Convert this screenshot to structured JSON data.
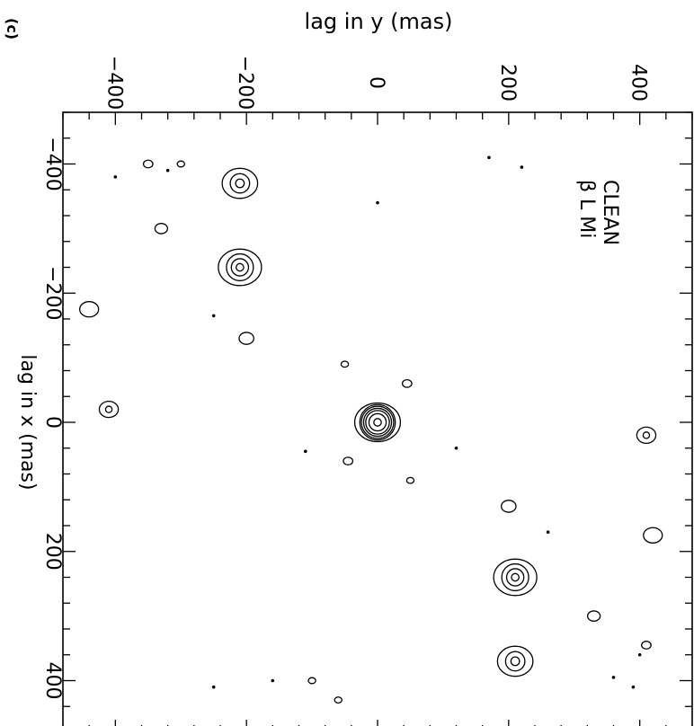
{
  "panel_label": "(c)",
  "chart_data": {
    "type": "contour",
    "title": "β L Mi",
    "subtitle": "CLEAN",
    "xlabel": "lag in x (mas)",
    "ylabel": "lag in y (mas)",
    "xlim": [
      -480,
      480
    ],
    "ylim": [
      -480,
      480
    ],
    "x_ticks": [
      -400,
      -200,
      0,
      200,
      400
    ],
    "y_ticks": [
      -400,
      -200,
      0,
      200,
      400
    ],
    "x_tick_labels": [
      "−400",
      "−200",
      "0",
      "200",
      "400"
    ],
    "y_tick_labels": [
      "−400",
      "−200",
      "0",
      "200",
      "400"
    ],
    "grid": false,
    "sources": [
      {
        "name": "central-peak",
        "x": 0,
        "y": 0,
        "radii": [
          7,
          16,
          22,
          26,
          30,
          33,
          36
        ]
      },
      {
        "name": "companion-upper",
        "x": 240,
        "y": 210,
        "radii": [
          7,
          16,
          25,
          34
        ]
      },
      {
        "name": "companion-lower",
        "x": -240,
        "y": -210,
        "radii": [
          7,
          16,
          25,
          34
        ]
      },
      {
        "name": "companion-upper-far",
        "x": 370,
        "y": 210,
        "radii": [
          8,
          18,
          28
        ]
      },
      {
        "name": "companion-lower-far",
        "x": -370,
        "y": -210,
        "radii": [
          8,
          18,
          28
        ]
      },
      {
        "name": "blob-right-edge",
        "x": 20,
        "y": 410,
        "radii": [
          6,
          15
        ]
      },
      {
        "name": "blob-left-edge",
        "x": -20,
        "y": -410,
        "radii": [
          6,
          15
        ]
      }
    ],
    "noise_contours": [
      {
        "x": 130,
        "y": 200,
        "r": 14
      },
      {
        "x": -130,
        "y": -200,
        "r": 14
      },
      {
        "x": 300,
        "y": 330,
        "r": 12
      },
      {
        "x": -300,
        "y": -330,
        "r": 12
      },
      {
        "x": 175,
        "y": 420,
        "r": 18
      },
      {
        "x": -175,
        "y": -440,
        "r": 18
      },
      {
        "x": 345,
        "y": 410,
        "r": 9
      },
      {
        "x": -400,
        "y": -350,
        "r": 9
      },
      {
        "x": -400,
        "y": -300,
        "r": 7
      },
      {
        "x": 60,
        "y": -45,
        "r": 9
      },
      {
        "x": -60,
        "y": 45,
        "r": 9
      },
      {
        "x": 90,
        "y": 50,
        "r": 7
      },
      {
        "x": -90,
        "y": -50,
        "r": 7
      },
      {
        "x": 400,
        "y": -100,
        "r": 7
      },
      {
        "x": 430,
        "y": -60,
        "r": 7
      }
    ],
    "dots": [
      {
        "x": -380,
        "y": -400
      },
      {
        "x": -390,
        "y": -320
      },
      {
        "x": -165,
        "y": -250
      },
      {
        "x": -395,
        "y": 220
      },
      {
        "x": -410,
        "y": 170
      },
      {
        "x": 170,
        "y": 260
      },
      {
        "x": 360,
        "y": 400
      },
      {
        "x": 400,
        "y": -160
      },
      {
        "x": 410,
        "y": -250
      },
      {
        "x": 40,
        "y": 120
      },
      {
        "x": 45,
        "y": -110
      },
      {
        "x": -340,
        "y": 0
      },
      {
        "x": 395,
        "y": 360
      },
      {
        "x": 410,
        "y": 390
      }
    ]
  }
}
